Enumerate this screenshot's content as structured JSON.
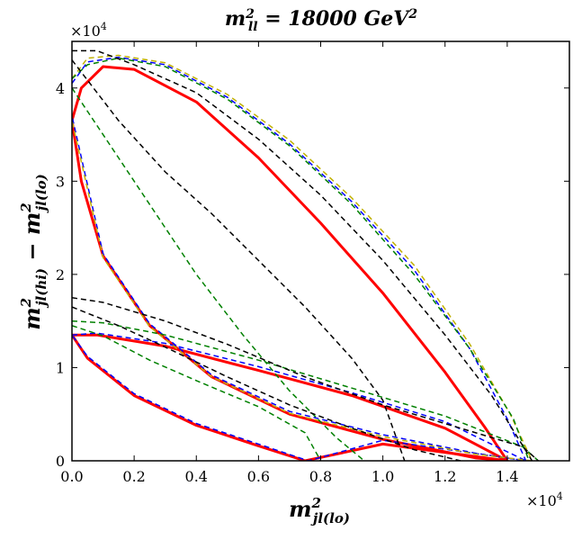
{
  "chart_data": {
    "type": "line",
    "title": "m²ll = 18000 GeV²",
    "title_parts": {
      "m": "m",
      "sup": "2",
      "sub": "ll",
      "rest": " = 18000 GeV",
      "unit_sup": "2"
    },
    "xlabel": "m²jl(lo)",
    "xlabel_parts": {
      "m": "m",
      "sup": "2",
      "sub": "jl(lo)"
    },
    "ylabel": "m²jl(hi) − m²jl(lo)",
    "ylabel_parts": {
      "m1": "m",
      "sup1": "2",
      "sub1": "jl(hi)",
      "op": " − ",
      "m2": "m",
      "sup2": "2",
      "sub2": "jl(lo)"
    },
    "x_multiplier": {
      "base": "×10",
      "exp": "4"
    },
    "y_multiplier": {
      "base": "×10",
      "exp": "4"
    },
    "xlim": [
      0,
      16000
    ],
    "ylim": [
      0,
      45000
    ],
    "x_ticks": [
      0,
      2000,
      4000,
      6000,
      8000,
      10000,
      12000,
      14000
    ],
    "x_tick_labels": [
      "0.0",
      "0.2",
      "0.4",
      "0.6",
      "0.8",
      "1.0",
      "1.2",
      "1.4"
    ],
    "y_ticks": [
      0,
      10000,
      20000,
      30000,
      40000
    ],
    "y_tick_labels": [
      "0",
      "1",
      "2",
      "3",
      "4"
    ],
    "colors": {
      "red": "#ff0000",
      "blue": "#0000ff",
      "green": "#008000",
      "yellow": "#c0b000",
      "black": "#000000"
    },
    "series": [
      {
        "name": "red-large",
        "color": "red",
        "style": "solid",
        "width": 3,
        "points": [
          [
            0,
            36500
          ],
          [
            300,
            40000
          ],
          [
            1000,
            42300
          ],
          [
            2000,
            42000
          ],
          [
            4000,
            38500
          ],
          [
            6000,
            32500
          ],
          [
            8000,
            25500
          ],
          [
            10000,
            18000
          ],
          [
            12000,
            9500
          ],
          [
            13300,
            3500
          ],
          [
            14000,
            0
          ],
          [
            13000,
            300
          ],
          [
            10000,
            2300
          ],
          [
            7000,
            5000
          ],
          [
            4500,
            9000
          ],
          [
            2500,
            14500
          ],
          [
            1000,
            22000
          ],
          [
            300,
            30000
          ],
          [
            0,
            36500
          ]
        ]
      },
      {
        "name": "red-small",
        "color": "red",
        "style": "solid",
        "width": 3,
        "points": [
          [
            0,
            13500
          ],
          [
            800,
            13500
          ],
          [
            3000,
            12300
          ],
          [
            6000,
            9700
          ],
          [
            9000,
            7000
          ],
          [
            12000,
            3500
          ],
          [
            14000,
            0
          ],
          [
            10000,
            1800
          ],
          [
            7500,
            0
          ],
          [
            6000,
            1600
          ],
          [
            4000,
            3800
          ],
          [
            2000,
            7000
          ],
          [
            500,
            11000
          ],
          [
            0,
            13500
          ]
        ]
      },
      {
        "name": "blue-large",
        "color": "blue",
        "style": "dashed",
        "width": 1.5,
        "points": [
          [
            0,
            40500
          ],
          [
            500,
            42800
          ],
          [
            1500,
            43300
          ],
          [
            3000,
            42500
          ],
          [
            5000,
            39000
          ],
          [
            7000,
            34000
          ],
          [
            9000,
            27800
          ],
          [
            11000,
            20500
          ],
          [
            12800,
            12000
          ],
          [
            14000,
            4500
          ],
          [
            14600,
            0
          ],
          [
            13000,
            800
          ],
          [
            10000,
            2800
          ],
          [
            7000,
            5300
          ],
          [
            4500,
            9200
          ],
          [
            2500,
            14700
          ],
          [
            1000,
            22200
          ],
          [
            0,
            37000
          ]
        ]
      },
      {
        "name": "blue-small",
        "color": "blue",
        "style": "dashed",
        "width": 1.5,
        "points": [
          [
            0,
            13500
          ],
          [
            800,
            13700
          ],
          [
            3000,
            12600
          ],
          [
            6000,
            10100
          ],
          [
            9000,
            7300
          ],
          [
            12000,
            4200
          ],
          [
            14600,
            0
          ],
          [
            10000,
            2200
          ],
          [
            7600,
            0
          ],
          [
            6000,
            1800
          ],
          [
            4000,
            4000
          ],
          [
            2000,
            7200
          ],
          [
            500,
            11200
          ],
          [
            0,
            13500
          ]
        ]
      },
      {
        "name": "yellow-large",
        "color": "yellow",
        "style": "dashed",
        "width": 1.5,
        "points": [
          [
            0,
            41000
          ],
          [
            500,
            43200
          ],
          [
            1500,
            43500
          ],
          [
            3000,
            42700
          ],
          [
            5000,
            39300
          ],
          [
            7000,
            34400
          ],
          [
            9000,
            28200
          ],
          [
            11000,
            21000
          ],
          [
            12800,
            12500
          ],
          [
            14100,
            5000
          ],
          [
            14800,
            0
          ],
          [
            13000,
            700
          ],
          [
            10000,
            2600
          ],
          [
            7000,
            5100
          ],
          [
            4500,
            9000
          ],
          [
            2500,
            14400
          ],
          [
            1000,
            21800
          ],
          [
            0,
            36500
          ]
        ]
      },
      {
        "name": "green-a",
        "color": "green",
        "style": "dashed",
        "width": 1.5,
        "points": [
          [
            0,
            41000
          ],
          [
            500,
            42500
          ],
          [
            1500,
            43200
          ],
          [
            3000,
            42300
          ],
          [
            5000,
            38800
          ],
          [
            7000,
            33800
          ],
          [
            9000,
            27500
          ],
          [
            11000,
            20000
          ],
          [
            12800,
            12000
          ],
          [
            14200,
            4500
          ],
          [
            14700,
            0
          ]
        ]
      },
      {
        "name": "green-b",
        "color": "green",
        "style": "dashed",
        "width": 1.5,
        "points": [
          [
            0,
            40000
          ],
          [
            1000,
            35000
          ],
          [
            2500,
            27500
          ],
          [
            4000,
            20000
          ],
          [
            5500,
            13500
          ],
          [
            7000,
            7500
          ],
          [
            8500,
            2500
          ],
          [
            9400,
            0
          ]
        ]
      },
      {
        "name": "green-c",
        "color": "green",
        "style": "dashed",
        "width": 1.5,
        "points": [
          [
            0,
            15000
          ],
          [
            1000,
            14800
          ],
          [
            3000,
            13500
          ],
          [
            6000,
            10800
          ],
          [
            9000,
            7800
          ],
          [
            12000,
            4800
          ],
          [
            14500,
            1500
          ],
          [
            15000,
            0
          ]
        ]
      },
      {
        "name": "green-d",
        "color": "green",
        "style": "dashed",
        "width": 1.5,
        "points": [
          [
            0,
            14500
          ],
          [
            1000,
            13400
          ],
          [
            2500,
            10800
          ],
          [
            4000,
            8600
          ],
          [
            6000,
            5800
          ],
          [
            7500,
            3000
          ],
          [
            8000,
            0
          ]
        ]
      },
      {
        "name": "black-a",
        "color": "black",
        "style": "dashed",
        "width": 1.5,
        "points": [
          [
            0,
            44000
          ],
          [
            800,
            44000
          ],
          [
            2000,
            42500
          ],
          [
            4000,
            39500
          ],
          [
            6000,
            34500
          ],
          [
            8000,
            28500
          ],
          [
            10000,
            21500
          ],
          [
            12000,
            13500
          ],
          [
            13500,
            7000
          ],
          [
            14800,
            0
          ]
        ]
      },
      {
        "name": "black-b",
        "color": "black",
        "style": "dashed",
        "width": 1.5,
        "points": [
          [
            0,
            43000
          ],
          [
            1500,
            36500
          ],
          [
            3000,
            31000
          ],
          [
            4500,
            26500
          ],
          [
            6000,
            21500
          ],
          [
            7500,
            16500
          ],
          [
            9000,
            11000
          ],
          [
            10000,
            6500
          ],
          [
            10700,
            0
          ]
        ]
      },
      {
        "name": "black-c",
        "color": "black",
        "style": "dashed",
        "width": 1.5,
        "points": [
          [
            0,
            17500
          ],
          [
            1000,
            17000
          ],
          [
            3000,
            15000
          ],
          [
            5000,
            12500
          ],
          [
            7500,
            9000
          ],
          [
            10000,
            6000
          ],
          [
            12500,
            3500
          ],
          [
            14500,
            1500
          ],
          [
            15000,
            0
          ]
        ]
      },
      {
        "name": "black-d",
        "color": "black",
        "style": "dashed",
        "width": 1.5,
        "points": [
          [
            0,
            16500
          ],
          [
            1500,
            14500
          ],
          [
            3000,
            12200
          ],
          [
            5000,
            9000
          ],
          [
            7000,
            6000
          ],
          [
            9000,
            3500
          ],
          [
            11000,
            1200
          ],
          [
            12500,
            0
          ]
        ]
      }
    ]
  }
}
